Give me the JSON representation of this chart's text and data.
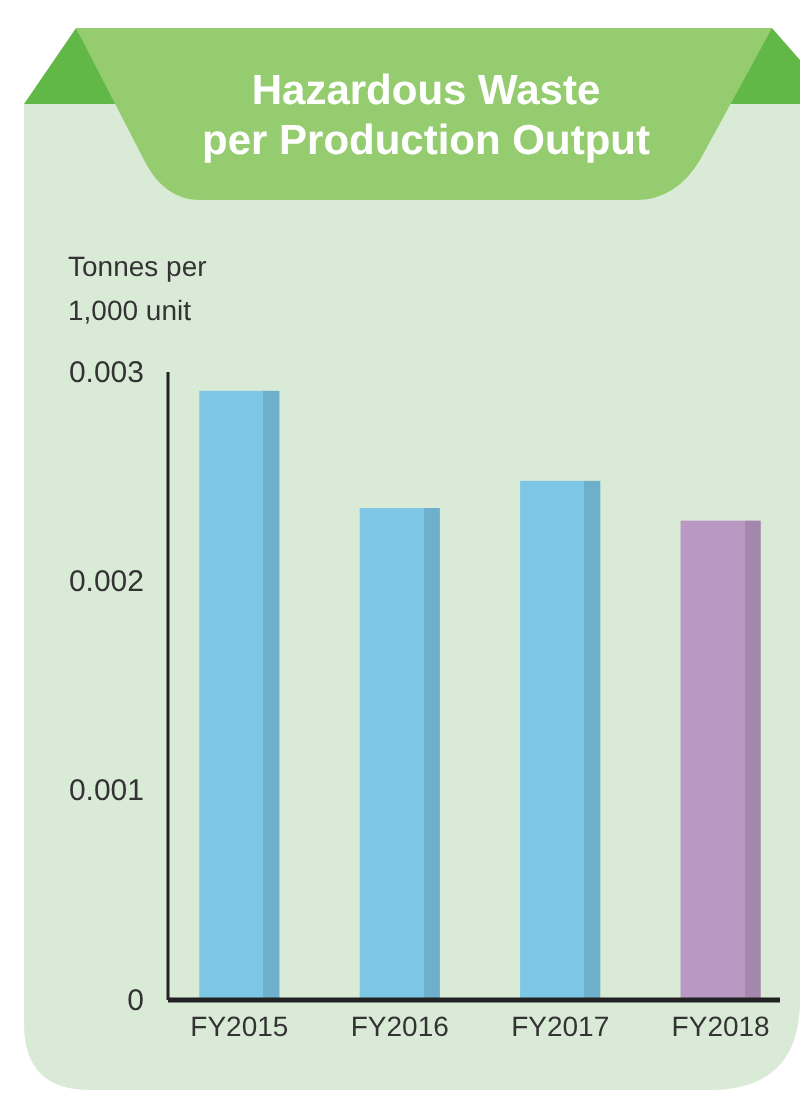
{
  "chart_data": {
    "type": "bar",
    "title": "Hazardous Waste\nper Production Output",
    "ylabel": "Tonnes per\n1,000 unit",
    "categories": [
      "FY2015",
      "FY2016",
      "FY2017",
      "FY2018"
    ],
    "values": [
      0.00291,
      0.00235,
      0.00248,
      0.00229
    ],
    "colors": [
      "#7dc6e6",
      "#7dc6e6",
      "#7dc6e6",
      "#b999c4"
    ],
    "ylim": [
      0,
      0.003
    ],
    "yticks": [
      0,
      0.001,
      0.002,
      0.003
    ]
  }
}
